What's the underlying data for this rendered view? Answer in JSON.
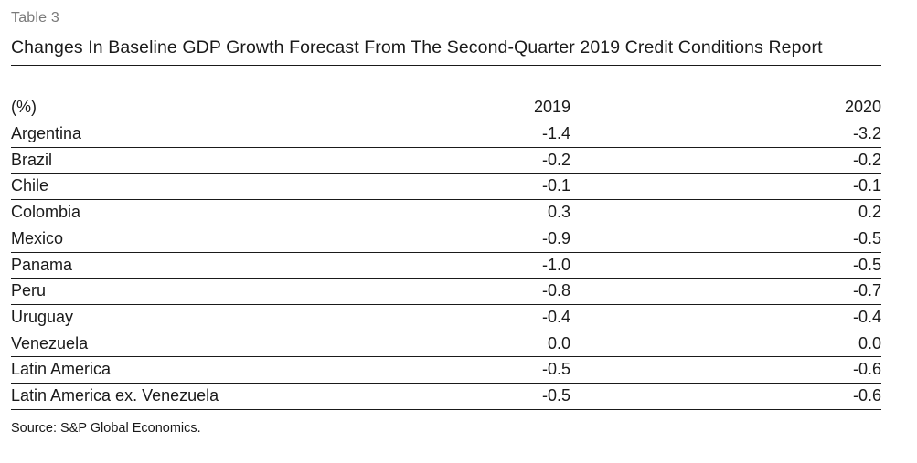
{
  "table_label": "Table 3",
  "title": "Changes In Baseline GDP Growth Forecast From The Second-Quarter 2019 Credit Conditions Report",
  "columns": [
    "(%)",
    "2019",
    "2020"
  ],
  "rows": [
    {
      "label": "Argentina",
      "y2019": "-1.4",
      "y2020": "-3.2"
    },
    {
      "label": "Brazil",
      "y2019": "-0.2",
      "y2020": "-0.2"
    },
    {
      "label": "Chile",
      "y2019": "-0.1",
      "y2020": "-0.1"
    },
    {
      "label": "Colombia",
      "y2019": "0.3",
      "y2020": "0.2"
    },
    {
      "label": "Mexico",
      "y2019": "-0.9",
      "y2020": "-0.5"
    },
    {
      "label": "Panama",
      "y2019": "-1.0",
      "y2020": "-0.5"
    },
    {
      "label": "Peru",
      "y2019": "-0.8",
      "y2020": "-0.7"
    },
    {
      "label": "Uruguay",
      "y2019": "-0.4",
      "y2020": "-0.4"
    },
    {
      "label": "Venezuela",
      "y2019": "0.0",
      "y2020": "0.0"
    },
    {
      "label": "Latin America",
      "y2019": "-0.5",
      "y2020": "-0.6"
    },
    {
      "label": "Latin America ex. Venezuela",
      "y2019": "-0.5",
      "y2020": "-0.6"
    }
  ],
  "source": "Source: S&P Global Economics."
}
